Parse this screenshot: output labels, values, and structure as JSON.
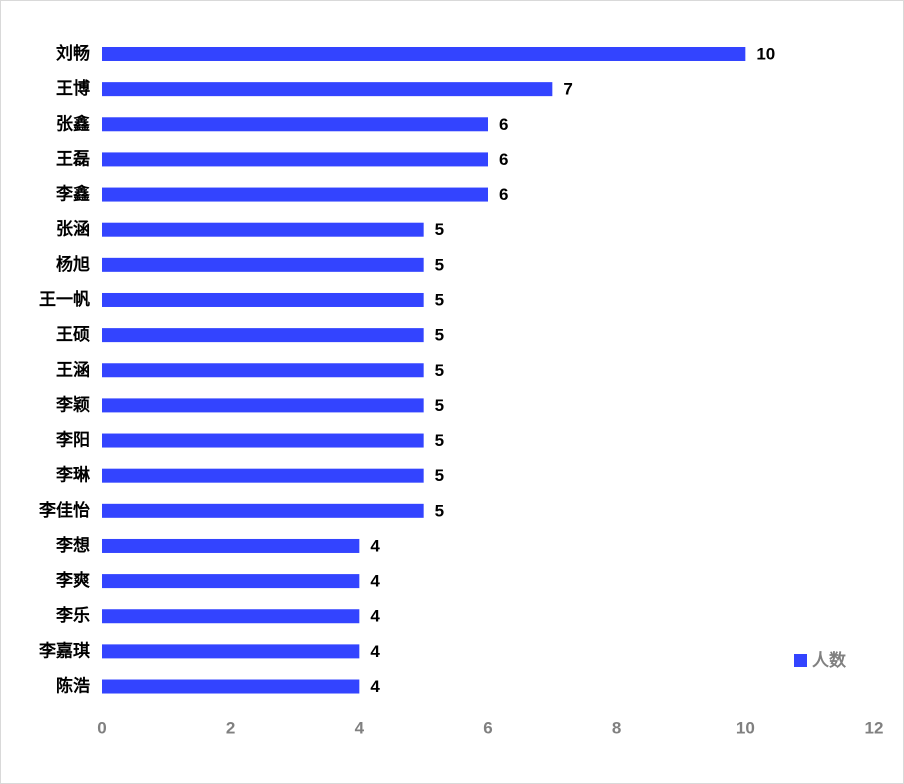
{
  "chart_data": {
    "type": "bar",
    "orientation": "horizontal",
    "categories": [
      "刘畅",
      "王博",
      "张鑫",
      "王磊",
      "李鑫",
      "张涵",
      "杨旭",
      "王一帆",
      "王硕",
      "王涵",
      "李颖",
      "李阳",
      "李琳",
      "李佳怡",
      "李想",
      "李爽",
      "李乐",
      "李嘉琪",
      "陈浩"
    ],
    "series": [
      {
        "name": "人数",
        "values": [
          10,
          7,
          6,
          6,
          6,
          5,
          5,
          5,
          5,
          5,
          5,
          5,
          5,
          5,
          4,
          4,
          4,
          4,
          4
        ],
        "color": "#3344ff"
      }
    ],
    "xlim": [
      0,
      12
    ],
    "xticks": [
      "0",
      "2",
      "4",
      "6",
      "8",
      "10",
      "12"
    ],
    "grid": false,
    "data_labels": true,
    "legend": "bottom-right"
  }
}
